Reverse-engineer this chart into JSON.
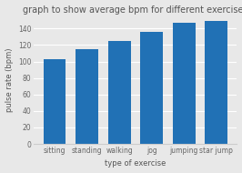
{
  "title": "graph to show average bpm for different exercises",
  "categories": [
    "sitting",
    "standing",
    "walking",
    "jog",
    "jumping",
    "star jump"
  ],
  "values": [
    103,
    115,
    125,
    136,
    147,
    149
  ],
  "bar_color": "#2171b5",
  "xlabel": "type of exercise",
  "ylabel": "pulse rate (bpm)",
  "ylim": [
    0,
    155
  ],
  "yticks": [
    0,
    20,
    40,
    60,
    80,
    100,
    120,
    140
  ],
  "ytick_labels": [
    "0",
    "20",
    "40",
    "60",
    "80",
    "100",
    "120",
    "140"
  ],
  "background_color": "#e8e8e8",
  "plot_bg_color": "#e8e8e8",
  "title_fontsize": 7,
  "axis_label_fontsize": 6,
  "tick_fontsize": 5.5
}
